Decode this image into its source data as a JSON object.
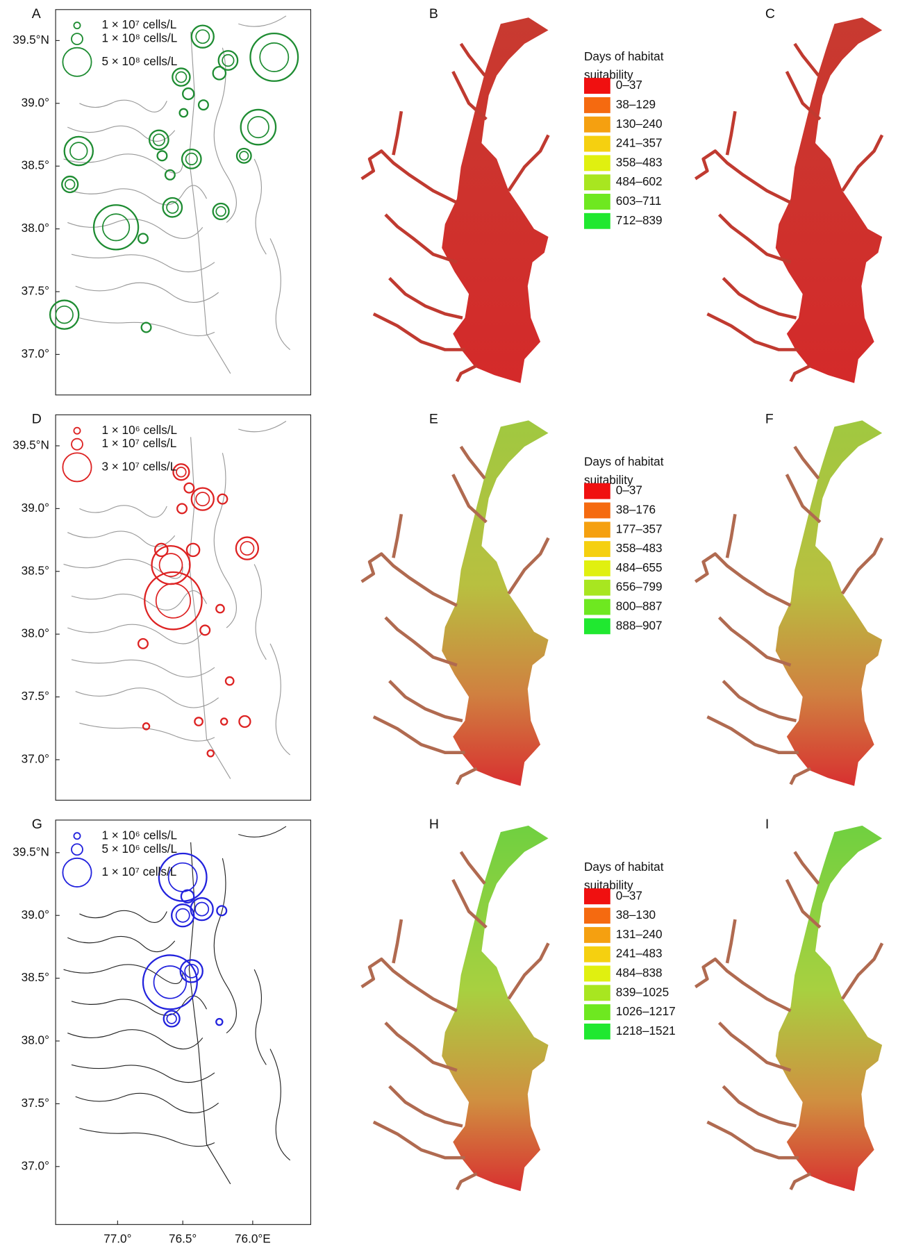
{
  "left_axis": {
    "lat_labels": [
      "39.5°N",
      "39.0°",
      "38.5°",
      "38.0°",
      "37.5°",
      "37.0°"
    ],
    "lon_labels": [
      "77.0°",
      "76.5°",
      "76.0°E"
    ]
  },
  "observation_panels": [
    {
      "label": "A",
      "color": "#1e8c32",
      "legend": [
        "1 × 10⁷ cells/L",
        "1 × 10⁸ cells/L",
        "5 × 10⁸ cells/L"
      ]
    },
    {
      "label": "D",
      "color": "#dd2222",
      "legend": [
        "1 × 10⁶ cells/L",
        "1 × 10⁷ cells/L",
        "3 × 10⁷ cells/L"
      ]
    },
    {
      "label": "G",
      "color": "#2222dd",
      "legend": [
        "1 × 10⁶ cells/L",
        "5 × 10⁶ cells/L",
        "1 × 10⁷ cells/L"
      ]
    }
  ],
  "model_rows": [
    {
      "labels": [
        "B",
        "C"
      ],
      "legend_title": [
        "Days of habitat",
        "suitability"
      ],
      "classes": [
        "0–37",
        "38–129",
        "130–240",
        "241–357",
        "358–483",
        "484–602",
        "603–711",
        "712–839"
      ]
    },
    {
      "labels": [
        "E",
        "F"
      ],
      "legend_title": [
        "Days of habitat",
        "suitability"
      ],
      "classes": [
        "0–37",
        "38–176",
        "177–357",
        "358–483",
        "484–655",
        "656–799",
        "800–887",
        "888–907"
      ]
    },
    {
      "labels": [
        "H",
        "I"
      ],
      "legend_title": [
        "Days of habitat",
        "suitability"
      ],
      "classes": [
        "0–37",
        "38–130",
        "131–240",
        "241–483",
        "484–838",
        "839–1025",
        "1026–1217",
        "1218–1521"
      ]
    }
  ],
  "class_colors": [
    "#f01010",
    "#f56a10",
    "#f5a010",
    "#f5d010",
    "#e0f010",
    "#a8e620",
    "#6ee820",
    "#20e830"
  ]
}
